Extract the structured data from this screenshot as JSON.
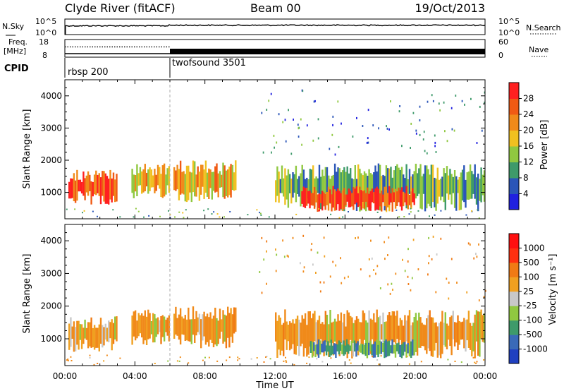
{
  "header": {
    "radar": "Clyde River (fitACF)",
    "beam": "Beam 00",
    "date": "19/Oct/2013"
  },
  "side_labels": {
    "nsky": "N.Sky",
    "freq_line1": "Freq.",
    "freq_line2": "[MHz]",
    "cpid": "CPID",
    "nsearch": "N.Search",
    "nave": "Nave"
  },
  "colors": {
    "velocity_pos": "#2b5db8",
    "velocity_neg": "#f08a1a",
    "ground_scatter": "#c8c8c8",
    "power_high": "#ff2020"
  },
  "chart_data": [
    {
      "type": "line",
      "panel": "noise",
      "series": [
        {
          "name": "N.Sky",
          "level": "~10^4 (near top of 10^0–10^5 range)"
        },
        {
          "name": "N.Search",
          "level": "~10^4"
        }
      ],
      "left_axis": {
        "label": "N.Sky",
        "ticks": [
          "10^5",
          "10^0"
        ]
      },
      "right_axis": {
        "label": "N.Search",
        "ticks": [
          "10^5",
          "10^0"
        ]
      }
    },
    {
      "type": "line",
      "panel": "frequency",
      "left_axis": {
        "label": "Freq. [MHz]",
        "ticks": [
          "18",
          "8"
        ],
        "range": [
          8,
          18
        ]
      },
      "right_axis": {
        "label": "Nave",
        "ticks": [
          "60",
          "0"
        ],
        "range": [
          0,
          60
        ]
      },
      "segments": [
        {
          "from": "00:00",
          "to": "06:00",
          "freq_mhz": 10,
          "nave": 35
        },
        {
          "from": "06:00",
          "to": "24:00",
          "freq_mhz": 10,
          "nave": 18
        }
      ]
    },
    {
      "type": "table",
      "panel": "cpid",
      "entries": [
        {
          "start": "00:00",
          "label": "rbsp 200"
        },
        {
          "start": "06:00",
          "label": "twofsound 3501"
        }
      ]
    },
    {
      "type": "heatmap",
      "panel": "power",
      "xlabel": "",
      "ylabel": "Slant Range [km]",
      "x_ticks": [
        "00:00",
        "04:00",
        "08:00",
        "12:00",
        "16:00",
        "20:00",
        "00:00"
      ],
      "y_ticks": [
        1000,
        2000,
        3000,
        4000
      ],
      "ylim": [
        180,
        4500
      ],
      "colorbar": {
        "label": "Power [dB]",
        "ticks": [
          4,
          8,
          12,
          16,
          20,
          24,
          28
        ],
        "colors": [
          "#2020e0",
          "#2a55b8",
          "#3e9a6a",
          "#90c840",
          "#f0c020",
          "#f08a1a",
          "#f05a14",
          "#ff2020"
        ]
      },
      "regions": [
        {
          "t0": 0.2,
          "t1": 3.0,
          "r0": 600,
          "r1": 1700,
          "power_db": 28
        },
        {
          "t0": 3.8,
          "t1": 6.0,
          "r0": 800,
          "r1": 1900,
          "power_db": 20
        },
        {
          "t0": 6.2,
          "t1": 9.8,
          "r0": 700,
          "r1": 2000,
          "power_db": 18
        },
        {
          "t0": 12.0,
          "t1": 24.0,
          "r0": 400,
          "r1": 1900,
          "power_db": 12
        },
        {
          "t0": 13.5,
          "t1": 20.0,
          "r0": 400,
          "r1": 1200,
          "power_db": 28
        }
      ]
    },
    {
      "type": "heatmap",
      "panel": "velocity",
      "xlabel": "Time UT",
      "ylabel": "Slant Range [km]",
      "x_ticks": [
        "00:00",
        "04:00",
        "08:00",
        "12:00",
        "16:00",
        "20:00",
        "00:00"
      ],
      "y_ticks": [
        1000,
        2000,
        3000,
        4000
      ],
      "ylim": [
        180,
        4500
      ],
      "colorbar": {
        "label": "Velocity [m s⁻¹]",
        "ticks": [
          1000,
          500,
          100,
          25,
          -25,
          -100,
          -500,
          -1000
        ],
        "colors": [
          "#2040c0",
          "#3a6ab8",
          "#3e9a6a",
          "#90c840",
          "#c8c8c8",
          "#f0a020",
          "#f07a14",
          "#ff3010",
          "#ff1010"
        ]
      },
      "regions": [
        {
          "t0": 0.2,
          "t1": 3.0,
          "r0": 600,
          "r1": 1700,
          "velocity": -250
        },
        {
          "t0": 3.8,
          "t1": 6.0,
          "r0": 800,
          "r1": 1900,
          "velocity": -250
        },
        {
          "t0": 6.2,
          "t1": 9.8,
          "r0": 700,
          "r1": 2000,
          "velocity": -250
        },
        {
          "t0": 12.0,
          "t1": 24.0,
          "r0": 400,
          "r1": 1900,
          "velocity": -200
        },
        {
          "t0": 14.0,
          "t1": 20.0,
          "r0": 400,
          "r1": 1000,
          "velocity": 150
        }
      ]
    }
  ]
}
